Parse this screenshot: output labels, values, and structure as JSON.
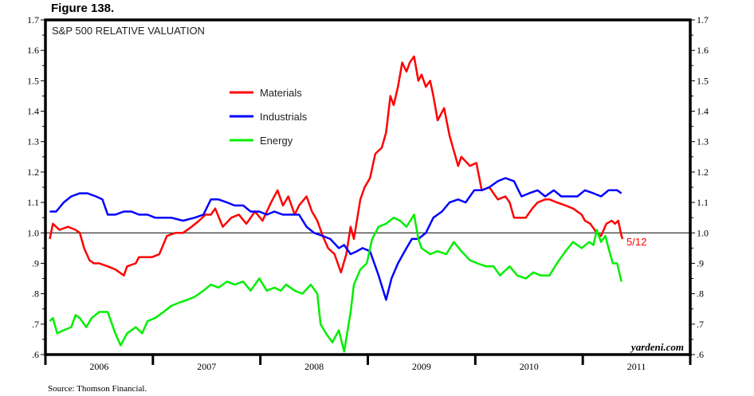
{
  "figure_label": "Figure 138.",
  "source": "Source: Thomson Financial.",
  "watermark": "yardeni.com",
  "chart_data": {
    "type": "line",
    "title": "S&P 500 RELATIVE VALUATION",
    "xlabel": "",
    "ylabel": "",
    "xlim": [
      2006,
      2012
    ],
    "ylim": [
      0.6,
      1.7
    ],
    "x_ticks": [
      "2006",
      "2007",
      "2008",
      "2009",
      "2010",
      "2011"
    ],
    "y_ticks_left": [
      "1.7",
      "1.6",
      "1.5",
      "1.4",
      "1.3",
      "1.2",
      "1.1",
      "1.0",
      ".9",
      ".8",
      ".7",
      ".6"
    ],
    "y_ticks_right": [
      "1.7",
      "1.6",
      "1.5",
      "1.4",
      "1.3",
      "1.2",
      "1.1",
      "1.0",
      ".9",
      ".8",
      ".7",
      ".6"
    ],
    "reference_line": 1.0,
    "grid": false,
    "legend_position": "top-left",
    "end_annotation": "5/12",
    "series": [
      {
        "name": "Materials",
        "color": "#ff0000",
        "points": [
          [
            2006.04,
            0.98
          ],
          [
            2006.07,
            1.03
          ],
          [
            2006.13,
            1.01
          ],
          [
            2006.21,
            1.02
          ],
          [
            2006.28,
            1.01
          ],
          [
            2006.32,
            1.0
          ],
          [
            2006.36,
            0.95
          ],
          [
            2006.41,
            0.91
          ],
          [
            2006.45,
            0.9
          ],
          [
            2006.5,
            0.9
          ],
          [
            2006.58,
            0.89
          ],
          [
            2006.65,
            0.88
          ],
          [
            2006.73,
            0.86
          ],
          [
            2006.76,
            0.89
          ],
          [
            2006.84,
            0.9
          ],
          [
            2006.87,
            0.92
          ],
          [
            2006.99,
            0.92
          ],
          [
            2007.06,
            0.93
          ],
          [
            2007.13,
            0.99
          ],
          [
            2007.21,
            1.0
          ],
          [
            2007.28,
            1.0
          ],
          [
            2007.36,
            1.02
          ],
          [
            2007.43,
            1.04
          ],
          [
            2007.49,
            1.06
          ],
          [
            2007.54,
            1.06
          ],
          [
            2007.58,
            1.08
          ],
          [
            2007.65,
            1.02
          ],
          [
            2007.73,
            1.05
          ],
          [
            2007.8,
            1.06
          ],
          [
            2007.87,
            1.03
          ],
          [
            2007.95,
            1.07
          ],
          [
            2008.02,
            1.04
          ],
          [
            2008.1,
            1.1
          ],
          [
            2008.16,
            1.14
          ],
          [
            2008.21,
            1.09
          ],
          [
            2008.26,
            1.12
          ],
          [
            2008.32,
            1.06
          ],
          [
            2008.36,
            1.09
          ],
          [
            2008.43,
            1.12
          ],
          [
            2008.48,
            1.07
          ],
          [
            2008.53,
            1.04
          ],
          [
            2008.58,
            0.99
          ],
          [
            2008.63,
            0.95
          ],
          [
            2008.69,
            0.93
          ],
          [
            2008.75,
            0.87
          ],
          [
            2008.8,
            0.93
          ],
          [
            2008.84,
            1.02
          ],
          [
            2008.87,
            0.98
          ],
          [
            2008.93,
            1.11
          ],
          [
            2008.97,
            1.15
          ],
          [
            2009.02,
            1.18
          ],
          [
            2009.07,
            1.26
          ],
          [
            2009.13,
            1.28
          ],
          [
            2009.17,
            1.33
          ],
          [
            2009.21,
            1.45
          ],
          [
            2009.24,
            1.42
          ],
          [
            2009.28,
            1.48
          ],
          [
            2009.32,
            1.56
          ],
          [
            2009.36,
            1.53
          ],
          [
            2009.39,
            1.56
          ],
          [
            2009.43,
            1.58
          ],
          [
            2009.47,
            1.5
          ],
          [
            2009.5,
            1.52
          ],
          [
            2009.54,
            1.48
          ],
          [
            2009.58,
            1.5
          ],
          [
            2009.61,
            1.45
          ],
          [
            2009.65,
            1.37
          ],
          [
            2009.71,
            1.41
          ],
          [
            2009.76,
            1.32
          ],
          [
            2009.8,
            1.27
          ],
          [
            2009.84,
            1.22
          ],
          [
            2009.87,
            1.25
          ],
          [
            2009.95,
            1.22
          ],
          [
            2010.01,
            1.23
          ],
          [
            2010.06,
            1.14
          ],
          [
            2010.13,
            1.15
          ],
          [
            2010.21,
            1.11
          ],
          [
            2010.28,
            1.12
          ],
          [
            2010.32,
            1.1
          ],
          [
            2010.36,
            1.05
          ],
          [
            2010.39,
            1.05
          ],
          [
            2010.47,
            1.05
          ],
          [
            2010.53,
            1.08
          ],
          [
            2010.58,
            1.1
          ],
          [
            2010.65,
            1.11
          ],
          [
            2010.69,
            1.11
          ],
          [
            2010.76,
            1.1
          ],
          [
            2010.84,
            1.09
          ],
          [
            2010.91,
            1.08
          ],
          [
            2010.99,
            1.06
          ],
          [
            2011.02,
            1.04
          ],
          [
            2011.07,
            1.03
          ],
          [
            2011.13,
            1.0
          ],
          [
            2011.17,
            0.99
          ],
          [
            2011.22,
            1.03
          ],
          [
            2011.27,
            1.04
          ],
          [
            2011.3,
            1.03
          ],
          [
            2011.33,
            1.04
          ],
          [
            2011.36,
            0.99
          ],
          [
            2011.37,
            0.98
          ]
        ]
      },
      {
        "name": "Industrials",
        "color": "#0000ff",
        "points": [
          [
            2006.04,
            1.07
          ],
          [
            2006.1,
            1.07
          ],
          [
            2006.17,
            1.1
          ],
          [
            2006.24,
            1.12
          ],
          [
            2006.32,
            1.13
          ],
          [
            2006.39,
            1.13
          ],
          [
            2006.47,
            1.12
          ],
          [
            2006.53,
            1.11
          ],
          [
            2006.58,
            1.06
          ],
          [
            2006.65,
            1.06
          ],
          [
            2006.73,
            1.07
          ],
          [
            2006.8,
            1.07
          ],
          [
            2006.87,
            1.06
          ],
          [
            2006.95,
            1.06
          ],
          [
            2007.02,
            1.05
          ],
          [
            2007.1,
            1.05
          ],
          [
            2007.17,
            1.05
          ],
          [
            2007.28,
            1.04
          ],
          [
            2007.39,
            1.05
          ],
          [
            2007.47,
            1.06
          ],
          [
            2007.54,
            1.11
          ],
          [
            2007.61,
            1.11
          ],
          [
            2007.69,
            1.1
          ],
          [
            2007.76,
            1.09
          ],
          [
            2007.84,
            1.09
          ],
          [
            2007.91,
            1.07
          ],
          [
            2007.99,
            1.07
          ],
          [
            2008.06,
            1.06
          ],
          [
            2008.13,
            1.07
          ],
          [
            2008.21,
            1.06
          ],
          [
            2008.28,
            1.06
          ],
          [
            2008.36,
            1.06
          ],
          [
            2008.43,
            1.02
          ],
          [
            2008.5,
            1.0
          ],
          [
            2008.58,
            0.99
          ],
          [
            2008.65,
            0.98
          ],
          [
            2008.73,
            0.95
          ],
          [
            2008.78,
            0.96
          ],
          [
            2008.84,
            0.93
          ],
          [
            2008.9,
            0.94
          ],
          [
            2008.95,
            0.95
          ],
          [
            2009.02,
            0.94
          ],
          [
            2009.1,
            0.86
          ],
          [
            2009.17,
            0.78
          ],
          [
            2009.22,
            0.85
          ],
          [
            2009.28,
            0.9
          ],
          [
            2009.36,
            0.95
          ],
          [
            2009.41,
            0.98
          ],
          [
            2009.47,
            0.98
          ],
          [
            2009.54,
            1.0
          ],
          [
            2009.61,
            1.05
          ],
          [
            2009.69,
            1.07
          ],
          [
            2009.76,
            1.1
          ],
          [
            2009.84,
            1.11
          ],
          [
            2009.91,
            1.1
          ],
          [
            2009.99,
            1.14
          ],
          [
            2010.06,
            1.14
          ],
          [
            2010.13,
            1.15
          ],
          [
            2010.21,
            1.17
          ],
          [
            2010.28,
            1.18
          ],
          [
            2010.36,
            1.17
          ],
          [
            2010.43,
            1.12
          ],
          [
            2010.5,
            1.13
          ],
          [
            2010.58,
            1.14
          ],
          [
            2010.65,
            1.12
          ],
          [
            2010.73,
            1.14
          ],
          [
            2010.8,
            1.12
          ],
          [
            2010.87,
            1.12
          ],
          [
            2010.95,
            1.12
          ],
          [
            2011.02,
            1.14
          ],
          [
            2011.1,
            1.13
          ],
          [
            2011.17,
            1.12
          ],
          [
            2011.24,
            1.14
          ],
          [
            2011.32,
            1.14
          ],
          [
            2011.36,
            1.13
          ]
        ]
      },
      {
        "name": "Energy",
        "color": "#00ee00",
        "points": [
          [
            2006.04,
            0.71
          ],
          [
            2006.07,
            0.72
          ],
          [
            2006.11,
            0.67
          ],
          [
            2006.17,
            0.68
          ],
          [
            2006.24,
            0.69
          ],
          [
            2006.28,
            0.73
          ],
          [
            2006.32,
            0.72
          ],
          [
            2006.38,
            0.69
          ],
          [
            2006.43,
            0.72
          ],
          [
            2006.5,
            0.74
          ],
          [
            2006.58,
            0.74
          ],
          [
            2006.61,
            0.71
          ],
          [
            2006.65,
            0.67
          ],
          [
            2006.7,
            0.63
          ],
          [
            2006.76,
            0.67
          ],
          [
            2006.84,
            0.69
          ],
          [
            2006.9,
            0.67
          ],
          [
            2006.95,
            0.71
          ],
          [
            2007.02,
            0.72
          ],
          [
            2007.1,
            0.74
          ],
          [
            2007.17,
            0.76
          ],
          [
            2007.24,
            0.77
          ],
          [
            2007.32,
            0.78
          ],
          [
            2007.39,
            0.79
          ],
          [
            2007.47,
            0.81
          ],
          [
            2007.54,
            0.83
          ],
          [
            2007.61,
            0.82
          ],
          [
            2007.69,
            0.84
          ],
          [
            2007.76,
            0.83
          ],
          [
            2007.84,
            0.84
          ],
          [
            2007.91,
            0.81
          ],
          [
            2007.99,
            0.85
          ],
          [
            2008.06,
            0.81
          ],
          [
            2008.13,
            0.82
          ],
          [
            2008.19,
            0.81
          ],
          [
            2008.24,
            0.83
          ],
          [
            2008.32,
            0.81
          ],
          [
            2008.39,
            0.8
          ],
          [
            2008.47,
            0.83
          ],
          [
            2008.53,
            0.8
          ],
          [
            2008.56,
            0.7
          ],
          [
            2008.61,
            0.67
          ],
          [
            2008.67,
            0.64
          ],
          [
            2008.73,
            0.68
          ],
          [
            2008.78,
            0.61
          ],
          [
            2008.84,
            0.74
          ],
          [
            2008.87,
            0.83
          ],
          [
            2008.93,
            0.88
          ],
          [
            2008.99,
            0.9
          ],
          [
            2009.04,
            0.98
          ],
          [
            2009.1,
            1.02
          ],
          [
            2009.17,
            1.03
          ],
          [
            2009.24,
            1.05
          ],
          [
            2009.3,
            1.04
          ],
          [
            2009.36,
            1.02
          ],
          [
            2009.43,
            1.06
          ],
          [
            2009.47,
            0.98
          ],
          [
            2009.5,
            0.95
          ],
          [
            2009.58,
            0.93
          ],
          [
            2009.65,
            0.94
          ],
          [
            2009.73,
            0.93
          ],
          [
            2009.8,
            0.97
          ],
          [
            2009.87,
            0.94
          ],
          [
            2009.95,
            0.91
          ],
          [
            2010.02,
            0.9
          ],
          [
            2010.1,
            0.89
          ],
          [
            2010.17,
            0.89
          ],
          [
            2010.23,
            0.86
          ],
          [
            2010.32,
            0.89
          ],
          [
            2010.39,
            0.86
          ],
          [
            2010.47,
            0.85
          ],
          [
            2010.54,
            0.87
          ],
          [
            2010.61,
            0.86
          ],
          [
            2010.69,
            0.86
          ],
          [
            2010.76,
            0.9
          ],
          [
            2010.84,
            0.94
          ],
          [
            2010.91,
            0.97
          ],
          [
            2010.99,
            0.95
          ],
          [
            2011.06,
            0.97
          ],
          [
            2011.1,
            0.96
          ],
          [
            2011.13,
            1.01
          ],
          [
            2011.17,
            0.97
          ],
          [
            2011.21,
            0.99
          ],
          [
            2011.24,
            0.95
          ],
          [
            2011.28,
            0.9
          ],
          [
            2011.32,
            0.9
          ],
          [
            2011.36,
            0.84
          ]
        ]
      }
    ]
  }
}
